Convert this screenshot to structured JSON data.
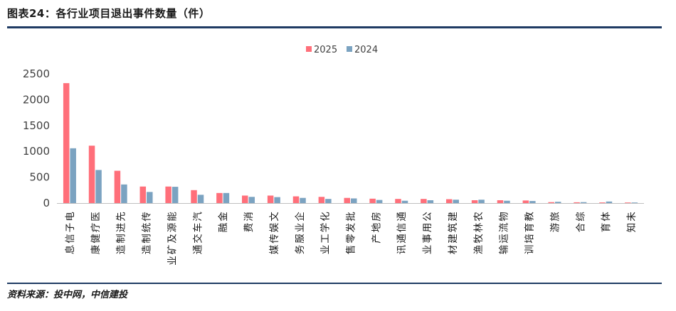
{
  "header": {
    "title": "图表24：各行业项目退出事件数量（件）"
  },
  "footer": {
    "source": "资料来源：投中网，中信建投"
  },
  "colors": {
    "series_2025": "#ff6f7a",
    "series_2024": "#7ba3c1",
    "axis": "#bfbfbf",
    "rule": "#1f3b63"
  },
  "chart_data": {
    "type": "bar",
    "title": "",
    "xlabel": "",
    "ylabel": "",
    "ylim": [
      0,
      2500
    ],
    "yticks": [
      0,
      500,
      1000,
      1500,
      2000,
      2500
    ],
    "grid": false,
    "legend_position": "top-center",
    "categories": [
      "电子信息",
      "医疗健康",
      "先进制造",
      "传统制造",
      "能源及矿业",
      "汽车交通",
      "金融",
      "消费",
      "文娱传媒",
      "企业服务",
      "化学工业",
      "批发零售",
      "房地产",
      "通信通讯",
      "公用事业",
      "建筑建材",
      "农林牧渔",
      "物流运输",
      "教育培训",
      "旅游",
      "综合",
      "体育",
      "未知"
    ],
    "series": [
      {
        "name": "2025",
        "values": [
          2320,
          1110,
          625,
          320,
          320,
          250,
          195,
          145,
          145,
          130,
          120,
          100,
          85,
          80,
          80,
          75,
          55,
          55,
          50,
          18,
          15,
          12,
          10
        ]
      },
      {
        "name": "2024",
        "values": [
          1060,
          640,
          360,
          215,
          315,
          160,
          195,
          120,
          115,
          100,
          80,
          90,
          60,
          45,
          55,
          65,
          65,
          45,
          40,
          25,
          18,
          30,
          3
        ]
      }
    ]
  }
}
